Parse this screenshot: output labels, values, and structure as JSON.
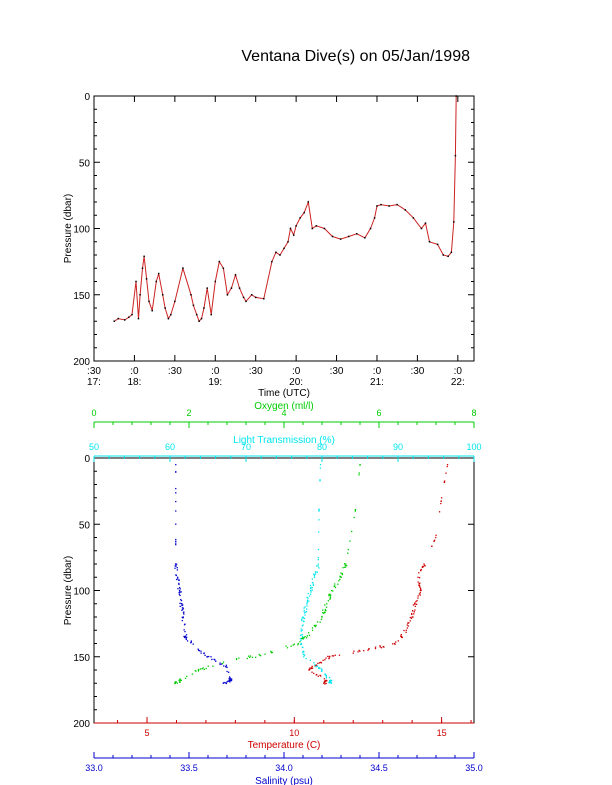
{
  "title": "Ventana Dive(s) on 05/Jan/1998",
  "colors": {
    "axis": "#000000",
    "timeseries": "#cc2222",
    "oxygen": "#00cc00",
    "light": "#00e5ee",
    "temperature": "#cc0000",
    "salinity": "#0000cc"
  },
  "chart_data": [
    {
      "type": "line",
      "name": "time-series",
      "title": "",
      "xlabel": "Time (UTC)",
      "ylabel": "Pressure (dbar)",
      "ylim": [
        200,
        0
      ],
      "yticks": [
        0,
        50,
        100,
        150,
        200
      ],
      "xlim": [
        17.5,
        22.2
      ],
      "xticks": [
        {
          "t": 17.5,
          "top": ":30",
          "bottom": "17:"
        },
        {
          "t": 18.0,
          "top": ":0",
          "bottom": "18:"
        },
        {
          "t": 18.5,
          "top": ":30",
          "bottom": ""
        },
        {
          "t": 19.0,
          "top": ":0",
          "bottom": "19:"
        },
        {
          "t": 19.5,
          "top": ":30",
          "bottom": ""
        },
        {
          "t": 20.0,
          "top": ":0",
          "bottom": "20:"
        },
        {
          "t": 20.5,
          "top": ":30",
          "bottom": ""
        },
        {
          "t": 21.0,
          "top": ":0",
          "bottom": "21:"
        },
        {
          "t": 21.5,
          "top": ":30",
          "bottom": ""
        },
        {
          "t": 22.0,
          "top": ":0",
          "bottom": "22:"
        }
      ],
      "x": [
        17.75,
        17.8,
        17.88,
        17.93,
        17.97,
        18.02,
        18.05,
        18.07,
        18.1,
        18.12,
        18.15,
        18.18,
        18.22,
        18.27,
        18.3,
        18.35,
        18.38,
        18.42,
        18.45,
        18.5,
        18.6,
        18.7,
        18.73,
        18.77,
        18.8,
        18.83,
        18.86,
        18.9,
        18.95,
        19.0,
        19.05,
        19.1,
        19.15,
        19.2,
        19.25,
        19.3,
        19.35,
        19.38,
        19.45,
        19.5,
        19.6,
        19.7,
        19.75,
        19.8,
        19.85,
        19.9,
        19.93,
        19.97,
        20.0,
        20.05,
        20.1,
        20.15,
        20.2,
        20.25,
        20.35,
        20.45,
        20.55,
        20.65,
        20.75,
        20.85,
        20.92,
        20.97,
        21.0,
        21.05,
        21.15,
        21.25,
        21.35,
        21.45,
        21.55,
        21.6,
        21.65,
        21.75,
        21.82,
        21.88,
        21.92,
        21.95,
        21.97,
        21.98
      ],
      "y": [
        170,
        168,
        169,
        167,
        165,
        140,
        168,
        150,
        130,
        121,
        138,
        155,
        162,
        140,
        134,
        150,
        160,
        168,
        165,
        155,
        130,
        150,
        158,
        165,
        170,
        168,
        160,
        145,
        165,
        140,
        125,
        130,
        150,
        145,
        135,
        145,
        152,
        155,
        150,
        152,
        153,
        125,
        118,
        120,
        115,
        110,
        100,
        105,
        98,
        92,
        88,
        80,
        100,
        98,
        100,
        106,
        108,
        106,
        104,
        107,
        100,
        92,
        83,
        82,
        83,
        82,
        86,
        92,
        100,
        96,
        110,
        112,
        120,
        121,
        118,
        95,
        45,
        0
      ]
    },
    {
      "type": "scatter",
      "name": "profiles",
      "title": "",
      "ylabel": "Pressure (dbar)",
      "ylim": [
        200,
        0
      ],
      "yticks": [
        0,
        50,
        100,
        150,
        200
      ],
      "axes": [
        {
          "name": "Temperature (C)",
          "color": "#cc0000",
          "lim": [
            3.2,
            16.1
          ],
          "ticks": [
            5,
            10,
            15
          ]
        },
        {
          "name": "Salinity (psu)",
          "color": "#0000cc",
          "lim": [
            33.0,
            35.0
          ],
          "ticks": [
            33.0,
            33.5,
            34.0,
            34.5,
            35.0
          ]
        },
        {
          "name": "Light Transmission (%)",
          "color": "#00e5ee",
          "lim": [
            50,
            100
          ],
          "ticks": [
            50,
            60,
            70,
            80,
            90,
            100
          ]
        },
        {
          "name": "Oxygen (ml/l)",
          "color": "#00cc00",
          "lim": [
            0,
            8
          ],
          "ticks": [
            0,
            2,
            4,
            6,
            8
          ]
        }
      ],
      "series": [
        {
          "name": "Temperature (C)",
          "axis": 0,
          "points": [
            [
              14.4,
              80
            ],
            [
              14.2,
              90
            ],
            [
              14.3,
              100
            ],
            [
              14.1,
              110
            ],
            [
              14.0,
              120
            ],
            [
              13.8,
              130
            ],
            [
              13.4,
              140
            ],
            [
              12.5,
              145
            ],
            [
              11.2,
              150
            ],
            [
              10.8,
              155
            ],
            [
              10.5,
              160
            ],
            [
              11.1,
              168
            ],
            [
              11.0,
              170
            ],
            [
              15.2,
              5
            ],
            [
              15.0,
              30
            ],
            [
              14.8,
              60
            ]
          ]
        },
        {
          "name": "Salinity (psu)",
          "axis": 1,
          "points": [
            [
              33.43,
              80
            ],
            [
              33.44,
              90
            ],
            [
              33.45,
              100
            ],
            [
              33.46,
              110
            ],
            [
              33.47,
              120
            ],
            [
              33.48,
              135
            ],
            [
              33.55,
              145
            ],
            [
              33.62,
              152
            ],
            [
              33.7,
              158
            ],
            [
              33.72,
              168
            ],
            [
              33.68,
              170
            ],
            [
              33.43,
              5
            ],
            [
              33.43,
              40
            ]
          ]
        },
        {
          "name": "Light Transmission (%)",
          "axis": 2,
          "points": [
            [
              79.5,
              80
            ],
            [
              79,
              90
            ],
            [
              78.5,
              100
            ],
            [
              78,
              110
            ],
            [
              77.5,
              120
            ],
            [
              77.4,
              130
            ],
            [
              77.3,
              140
            ],
            [
              77.6,
              150
            ],
            [
              80,
              160
            ],
            [
              81,
              168
            ],
            [
              81.2,
              170
            ],
            [
              79.8,
              5
            ],
            [
              79.6,
              40
            ]
          ]
        },
        {
          "name": "Oxygen (ml/l)",
          "axis": 3,
          "points": [
            [
              5.3,
              80
            ],
            [
              5.2,
              90
            ],
            [
              5.0,
              100
            ],
            [
              4.9,
              110
            ],
            [
              4.8,
              120
            ],
            [
              4.6,
              130
            ],
            [
              4.3,
              140
            ],
            [
              3.6,
              148
            ],
            [
              3.0,
              152
            ],
            [
              2.2,
              160
            ],
            [
              1.8,
              168
            ],
            [
              1.7,
              170
            ],
            [
              5.6,
              5
            ],
            [
              5.5,
              40
            ]
          ]
        }
      ]
    }
  ]
}
